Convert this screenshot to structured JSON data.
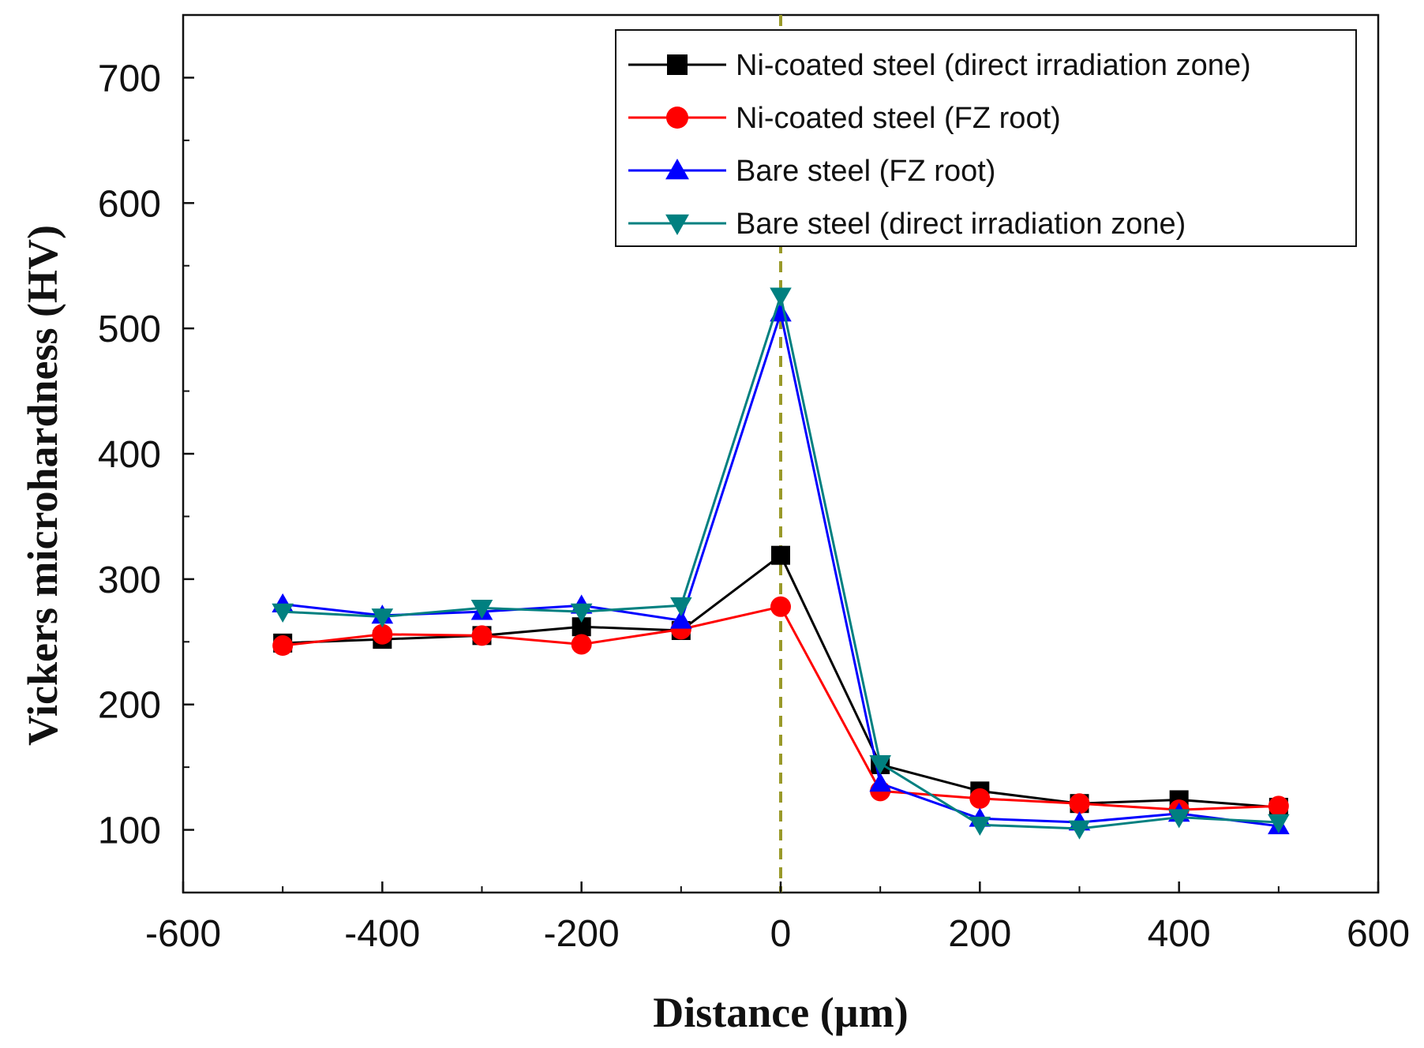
{
  "chart_data": {
    "type": "line",
    "xlabel": "Distance (µm)",
    "ylabel": "Vickers microhardness (HV)",
    "xlim": [
      -600,
      600
    ],
    "ylim": [
      50,
      750
    ],
    "xticks": [
      -600,
      -400,
      -200,
      0,
      200,
      400,
      600
    ],
    "yticks": [
      100,
      200,
      300,
      400,
      500,
      600,
      700
    ],
    "grid": false,
    "legend_position": "top-right",
    "reference_line": {
      "x": 0,
      "style": "dashed",
      "color": "#9a9a2a"
    },
    "x": [
      -500,
      -400,
      -300,
      -200,
      -100,
      0,
      100,
      200,
      300,
      400,
      500
    ],
    "series": [
      {
        "name": "Ni-coated steel  (direct irradiation zone)",
        "color": "#000000",
        "marker": "square",
        "values": [
          249,
          252,
          255,
          262,
          259,
          319,
          152,
          131,
          121,
          124,
          118
        ]
      },
      {
        "name": "Ni-coated steel (FZ root)",
        "color": "#ff0000",
        "marker": "circle",
        "values": [
          247,
          256,
          255,
          248,
          260,
          278,
          131,
          125,
          121,
          116,
          119
        ]
      },
      {
        "name": "Bare steel (FZ root)",
        "color": "#0000ff",
        "marker": "triangle-up",
        "values": [
          280,
          271,
          274,
          279,
          267,
          512,
          137,
          109,
          106,
          113,
          103
        ]
      },
      {
        "name": "Bare steel (direct irradiation zone)",
        "color": "#008080",
        "marker": "triangle-down",
        "values": [
          274,
          270,
          277,
          274,
          279,
          526,
          153,
          104,
          101,
          110,
          106
        ]
      }
    ]
  }
}
